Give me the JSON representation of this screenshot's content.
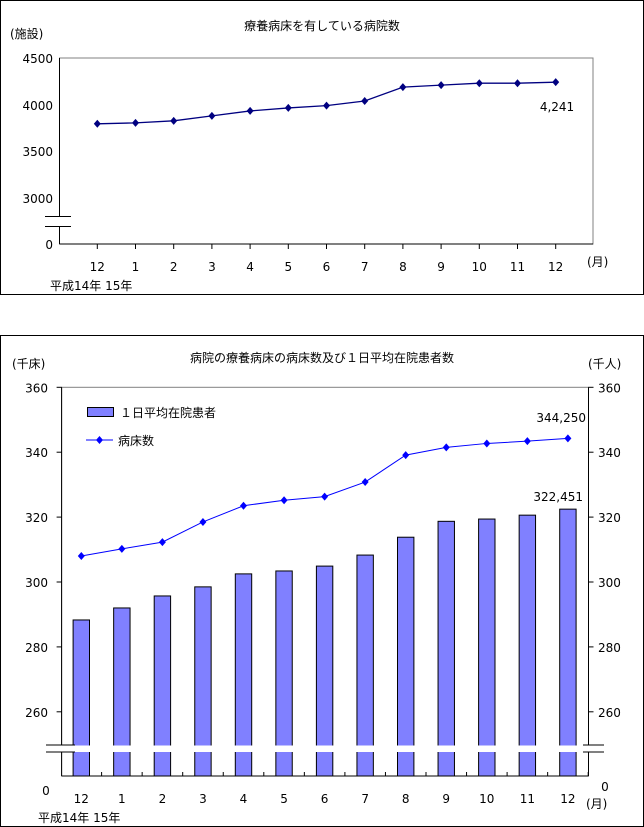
{
  "chart_data": [
    {
      "type": "line",
      "title": "療養病床を有している病院数",
      "ylabel": "(施設)",
      "xlabel": "(月)",
      "year_label": "平成14年  15年",
      "categories": [
        "12",
        "1",
        "2",
        "3",
        "4",
        "5",
        "6",
        "7",
        "8",
        "9",
        "10",
        "11",
        "12"
      ],
      "yticks": [
        "0",
        "3000",
        "3500",
        "4000",
        "4500"
      ],
      "ylim": [
        3000,
        4500
      ],
      "axis_break": true,
      "series": [
        {
          "name": "病院数",
          "color": "#000080",
          "values": [
            3795,
            3805,
            3827,
            3880,
            3933,
            3965,
            3990,
            4039,
            4188,
            4209,
            4230,
            4230,
            4241
          ]
        }
      ],
      "annotations": [
        {
          "text": "4,241",
          "category_index": 12
        }
      ],
      "grid": false
    },
    {
      "type": "bar+line",
      "title": "病院の療養病床の病床数及び１日平均在院患者数",
      "ylabel_left": "(千床)",
      "ylabel_right": "(千人)",
      "xlabel": "(月)",
      "year_label": "平成14年  15年",
      "categories": [
        "12",
        "1",
        "2",
        "3",
        "4",
        "5",
        "6",
        "7",
        "8",
        "9",
        "10",
        "11",
        "12"
      ],
      "yticks": [
        "260",
        "280",
        "300",
        "320",
        "340",
        "360"
      ],
      "zero_label": "0",
      "ylim": [
        250,
        360
      ],
      "axis_break": true,
      "legend_position": "top-left",
      "series": [
        {
          "name": "１日平均在院患者",
          "kind": "bar",
          "color": "#8080ff",
          "values": [
            288.3,
            292.0,
            295.7,
            298.5,
            302.5,
            303.4,
            304.9,
            308.3,
            313.8,
            318.7,
            319.4,
            320.6,
            322.451
          ]
        },
        {
          "name": "病床数",
          "kind": "line",
          "color": "#0000ff",
          "values": [
            308.0,
            310.2,
            312.3,
            318.5,
            323.5,
            325.2,
            326.3,
            330.8,
            339.1,
            341.5,
            342.7,
            343.4,
            344.25
          ]
        }
      ],
      "annotations": [
        {
          "text": "344,250",
          "series": "病床数"
        },
        {
          "text": "322,451",
          "series": "１日平均在院患者"
        }
      ],
      "grid": false
    }
  ]
}
